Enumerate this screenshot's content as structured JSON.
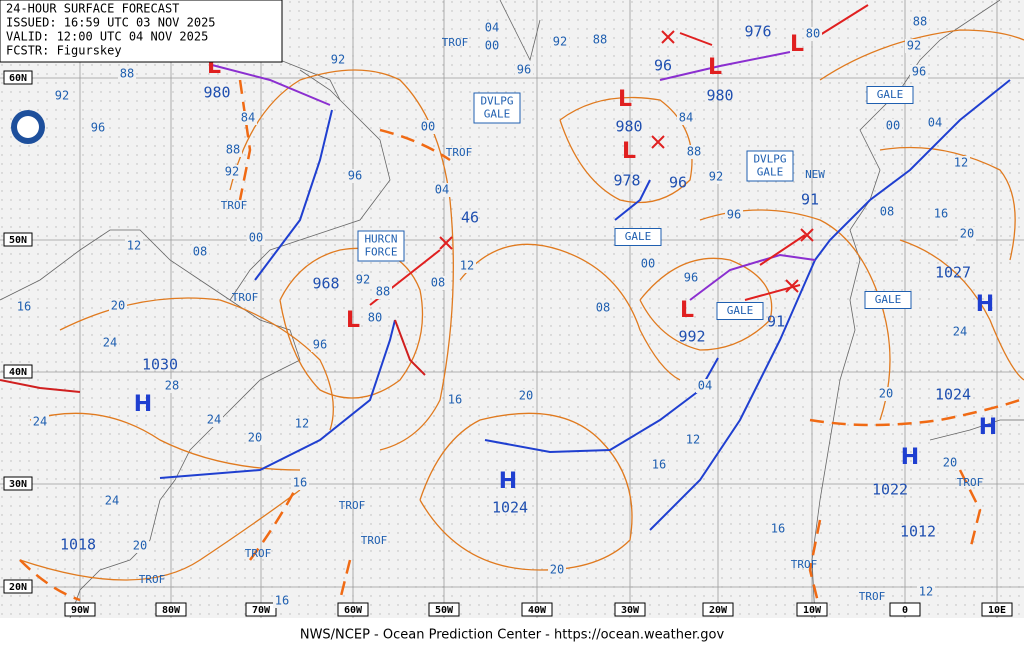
{
  "header": {
    "title": "24-HOUR SURFACE FORECAST",
    "issued": "ISSUED: 16:59 UTC 03 NOV 2025",
    "valid": "VALID: 12:00 UTC 04 NOV 2025",
    "forecaster": "FCSTR: Figurskey"
  },
  "footer": "NWS/NCEP - Ocean Prediction Center - https://ocean.weather.gov",
  "lat_labels": [
    "60N",
    "50N",
    "40N",
    "30N",
    "20N"
  ],
  "lon_labels": [
    "90W",
    "80W",
    "70W",
    "60W",
    "50W",
    "40W",
    "30W",
    "20W",
    "10W",
    "0",
    "10E"
  ],
  "highs": [
    {
      "symbol": "H",
      "pressure": "1030"
    },
    {
      "symbol": "H",
      "pressure": "1024"
    },
    {
      "symbol": "H",
      "pressure": "1027"
    },
    {
      "symbol": "H",
      "pressure": "1024"
    },
    {
      "symbol": "H",
      "pressure": "1022"
    }
  ],
  "extra_pressures": [
    "1012",
    "1018"
  ],
  "lows": [
    {
      "symbol": "L",
      "pressure": "980"
    },
    {
      "symbol": "L",
      "pressure": "968"
    },
    {
      "symbol": "L",
      "pressure": "980"
    },
    {
      "symbol": "L",
      "pressure": "978"
    },
    {
      "symbol": "L",
      "pressure": "980"
    },
    {
      "symbol": "L",
      "pressure": "976"
    },
    {
      "symbol": "L",
      "pressure": "992"
    }
  ],
  "other_pressures": [
    "96",
    "96",
    "46",
    "91",
    "91"
  ],
  "isobar_labels": [
    "04",
    "00",
    "96",
    "92",
    "88",
    "92",
    "88",
    "92",
    "96",
    "84",
    "88",
    "92",
    "00",
    "96",
    "04",
    "00",
    "12",
    "08",
    "16",
    "20",
    "24",
    "28",
    "24",
    "20",
    "12",
    "16",
    "24",
    "24",
    "20",
    "16",
    "12",
    "08",
    "92",
    "88",
    "80",
    "96",
    "16",
    "20",
    "08",
    "00",
    "96",
    "84",
    "88",
    "92",
    "96",
    "04",
    "12",
    "16",
    "20",
    "80",
    "88",
    "92",
    "96",
    "00",
    "04",
    "12",
    "08",
    "16",
    "20",
    "24",
    "20",
    "20",
    "16",
    "12"
  ],
  "boxes": [
    [
      "DVLPG",
      "GALE"
    ],
    [
      "HURCN",
      "FORCE"
    ],
    [
      "GALE"
    ],
    [
      "DVLPG",
      "GALE"
    ],
    [
      "GALE"
    ],
    [
      "GALE"
    ],
    [
      "GALE"
    ]
  ],
  "trof_labels": [
    "TROF",
    "TROF",
    "TROF",
    "TROF",
    "TROF",
    "TROF",
    "TROF",
    "TROF",
    "TROF",
    "TROF",
    "TROF"
  ],
  "new_label": "NEW"
}
